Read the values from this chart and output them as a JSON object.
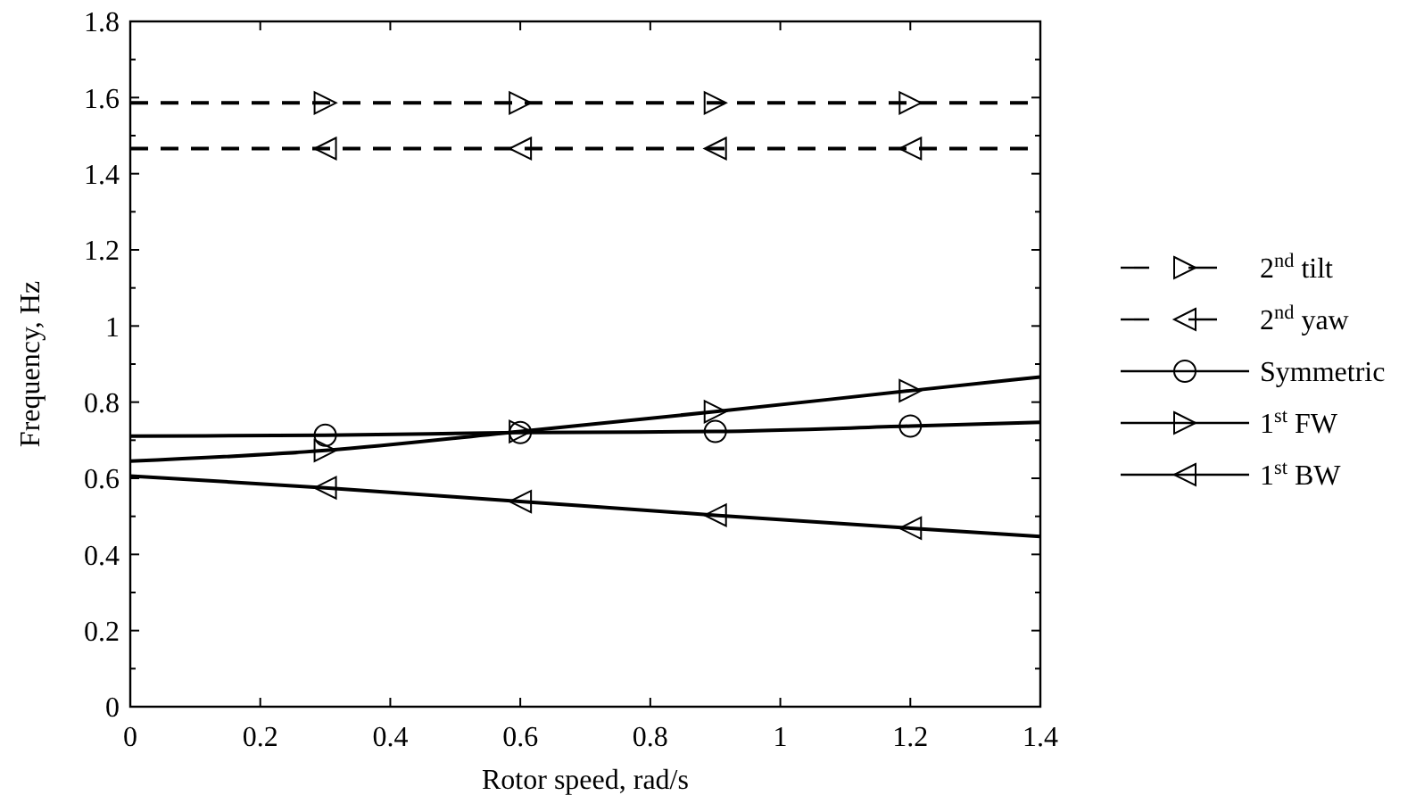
{
  "chart_data": {
    "type": "line",
    "xlabel": "Rotor speed, rad/s",
    "ylabel": "Frequency, Hz",
    "x": [
      0,
      0.3,
      0.6,
      0.9,
      1.2,
      1.4
    ],
    "series": [
      {
        "name": "2$^{nd}$ tilt",
        "color": "#000000",
        "line_style": "dashed",
        "marker": "triangle-right",
        "values": [
          1.586,
          1.586,
          1.586,
          1.586,
          1.586,
          1.586
        ]
      },
      {
        "name": "2$^{nd}$ yaw",
        "color": "#000000",
        "line_style": "dashed",
        "marker": "triangle-left",
        "values": [
          1.466,
          1.466,
          1.466,
          1.466,
          1.466,
          1.466
        ]
      },
      {
        "name": "Symmetric",
        "color": "#000000",
        "line_style": "solid",
        "marker": "circle",
        "values": [
          0.711,
          0.713,
          0.72,
          0.723,
          0.737,
          0.747
        ]
      },
      {
        "name": "1$^{st}$ FW",
        "color": "#000000",
        "line_style": "solid",
        "marker": "triangle-right",
        "values": [
          0.645,
          0.673,
          0.723,
          0.775,
          0.83,
          0.866
        ]
      },
      {
        "name": "1$^{st}$ BW",
        "color": "#000000",
        "line_style": "solid",
        "marker": "triangle-left",
        "values": [
          0.606,
          0.575,
          0.539,
          0.503,
          0.469,
          0.447
        ]
      }
    ],
    "xlim": [
      0,
      1.4
    ],
    "xticks": [
      0,
      0.2,
      0.4,
      0.6,
      0.8,
      1,
      1.2,
      1.4
    ],
    "ylim": [
      0,
      1.8
    ],
    "yticks": [
      0,
      {
        "value": 0.1,
        "label": null
      },
      0.2,
      {
        "value": 0.3,
        "label": null
      },
      0.4,
      {
        "value": 0.5,
        "label": null
      },
      0.6,
      {
        "value": 0.7,
        "label": null
      },
      0.8,
      {
        "value": 0.9,
        "label": null
      },
      1,
      {
        "value": 1.1,
        "label": null
      },
      1.2,
      {
        "value": 1.3,
        "label": null
      },
      1.4,
      {
        "value": 1.5,
        "label": null
      },
      1.6,
      {
        "value": 1.7,
        "label": null
      },
      1.8
    ],
    "grid": false,
    "legend": "right"
  }
}
